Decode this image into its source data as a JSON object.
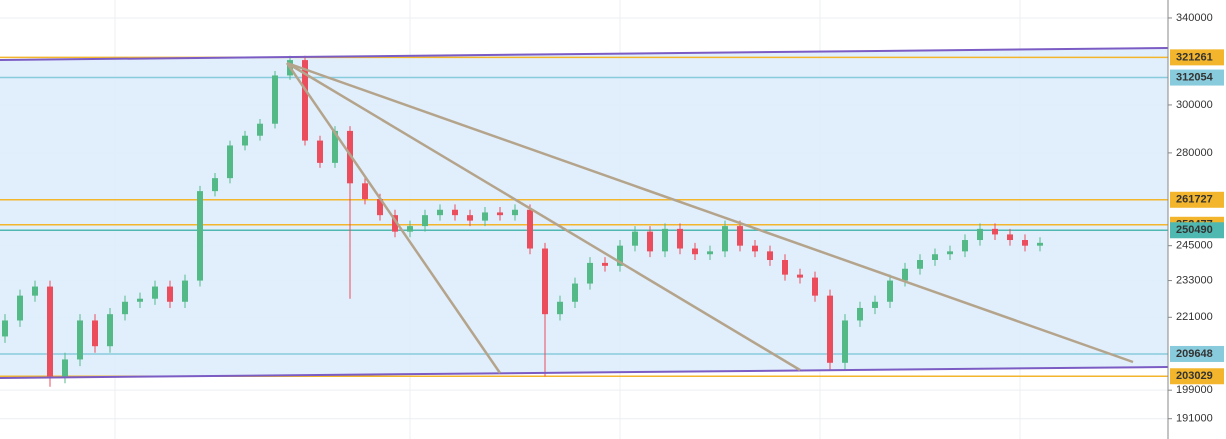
{
  "chart_data": {
    "type": "candlestick",
    "log": true,
    "grid": true,
    "ylim": [
      185500,
      348900
    ],
    "yticks": [
      340000,
      300000,
      280000,
      245000,
      233000,
      221000,
      199000,
      191000
    ],
    "levels": [
      {
        "value": 321261,
        "color": "#f2b52c"
      },
      {
        "value": 312054,
        "color": "#88cbdc"
      },
      {
        "value": 261727,
        "color": "#f2b52c"
      },
      {
        "value": 252477,
        "color": "#f2b52c"
      },
      {
        "value": 250490,
        "color": "#4fb8b0"
      },
      {
        "value": 209648,
        "color": "#88cbdc"
      },
      {
        "value": 203029,
        "color": "#f2b52c"
      }
    ],
    "up_color": "#53b987",
    "down_color": "#eb4d5c",
    "open": [
      215000,
      220000,
      228000,
      231000,
      203000,
      208000,
      220000,
      212000,
      222000,
      226000,
      227000,
      231000,
      226000,
      233000,
      265000,
      270000,
      283000,
      287000,
      292000,
      313000,
      320000,
      285000,
      276000,
      289000,
      268000,
      262000,
      256000,
      250000,
      252000,
      256000,
      258000,
      256000,
      254000,
      257000,
      256000,
      258000,
      244000,
      222000,
      226000,
      232000,
      239000,
      238000,
      245000,
      250000,
      243000,
      251000,
      244000,
      242000,
      243000,
      252000,
      245000,
      243000,
      240000,
      235000,
      234000,
      228000,
      207000,
      220000,
      224000,
      226000,
      233000,
      237000,
      240000,
      242000,
      243000,
      247000,
      251000,
      249000,
      247000,
      245000
    ],
    "high": [
      222000,
      230000,
      233000,
      233000,
      210000,
      222000,
      222000,
      224000,
      228000,
      229000,
      233000,
      233000,
      235000,
      267000,
      272000,
      285000,
      289000,
      294000,
      315000,
      322000,
      322000,
      287000,
      291000,
      291000,
      270000,
      264000,
      258000,
      254000,
      258000,
      260000,
      260000,
      258000,
      259000,
      259000,
      260000,
      260000,
      246000,
      228000,
      234000,
      241000,
      241000,
      247000,
      252000,
      252000,
      253000,
      253000,
      246000,
      245000,
      254000,
      254000,
      247000,
      245000,
      242000,
      237000,
      236000,
      230000,
      222000,
      226000,
      228000,
      235000,
      239000,
      242000,
      244000,
      245000,
      249000,
      253000,
      253000,
      251000,
      249000,
      248000
    ],
    "low": [
      213000,
      218000,
      226000,
      200000,
      201000,
      206000,
      210000,
      210000,
      220000,
      224000,
      225000,
      224000,
      224000,
      231000,
      263000,
      268000,
      281000,
      285000,
      290000,
      311000,
      283000,
      274000,
      274000,
      227000,
      260000,
      254000,
      248000,
      248000,
      250000,
      254000,
      254000,
      252000,
      252000,
      254000,
      254000,
      242000,
      203000,
      220000,
      224000,
      230000,
      236000,
      236000,
      243000,
      241000,
      241000,
      242000,
      240000,
      240000,
      241000,
      243000,
      241000,
      238000,
      233000,
      232000,
      226000,
      205000,
      205000,
      218000,
      222000,
      224000,
      231000,
      235000,
      238000,
      240000,
      241000,
      245000,
      247000,
      245000,
      243000,
      243000
    ],
    "close": [
      220000,
      228000,
      231000,
      203000,
      208000,
      220000,
      212000,
      222000,
      226000,
      227000,
      231000,
      226000,
      233000,
      265000,
      270000,
      283000,
      287000,
      292000,
      313000,
      320000,
      285000,
      276000,
      289000,
      268000,
      262000,
      256000,
      250000,
      252000,
      256000,
      258000,
      256000,
      254000,
      257000,
      256000,
      258000,
      244000,
      222000,
      226000,
      232000,
      239000,
      238000,
      245000,
      250000,
      243000,
      251000,
      244000,
      242000,
      243000,
      252000,
      245000,
      243000,
      240000,
      235000,
      234000,
      228000,
      207000,
      220000,
      224000,
      226000,
      233000,
      237000,
      240000,
      242000,
      243000,
      247000,
      251000,
      249000,
      247000,
      245000,
      246000
    ]
  }
}
